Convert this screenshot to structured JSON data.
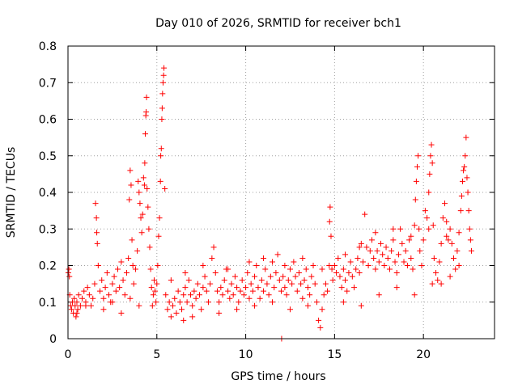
{
  "chart_data": {
    "type": "scatter",
    "title": "Day 010 of 2026, SRMTID for receiver bch1",
    "xlabel": "GPS time / hours",
    "ylabel": "SRMTID / TECUs",
    "xlim": [
      0,
      24
    ],
    "ylim": [
      0,
      0.8
    ],
    "xticks": [
      0,
      5,
      10,
      15,
      20
    ],
    "xtick_labels": [
      "0",
      "5",
      "10",
      "15",
      "20"
    ],
    "yticks": [
      0,
      0.1,
      0.2,
      0.3,
      0.4,
      0.5,
      0.6,
      0.7,
      0.8
    ],
    "ytick_labels": [
      "0",
      "0.1",
      "0.2",
      "0.3",
      "0.4",
      "0.5",
      "0.6",
      "0.7",
      "0.8"
    ],
    "grid": true,
    "marker": "plus",
    "color": "#ff0000",
    "series": [
      {
        "name": "bch1",
        "points": [
          [
            0.02,
            0.18
          ],
          [
            0.05,
            0.19
          ],
          [
            0.08,
            0.17
          ],
          [
            0.1,
            0.12
          ],
          [
            0.15,
            0.09
          ],
          [
            0.2,
            0.08
          ],
          [
            0.25,
            0.1
          ],
          [
            0.3,
            0.07
          ],
          [
            0.35,
            0.11
          ],
          [
            0.4,
            0.09
          ],
          [
            0.45,
            0.06
          ],
          [
            0.5,
            0.1
          ],
          [
            0.55,
            0.08
          ],
          [
            0.6,
            0.12
          ],
          [
            0.7,
            0.09
          ],
          [
            0.8,
            0.11
          ],
          [
            0.9,
            0.13
          ],
          [
            1.0,
            0.1
          ],
          [
            1.1,
            0.14
          ],
          [
            1.2,
            0.12
          ],
          [
            1.3,
            0.09
          ],
          [
            1.4,
            0.11
          ],
          [
            1.5,
            0.15
          ],
          [
            1.55,
            0.37
          ],
          [
            1.6,
            0.33
          ],
          [
            1.62,
            0.29
          ],
          [
            1.65,
            0.26
          ],
          [
            1.7,
            0.2
          ],
          [
            1.8,
            0.13
          ],
          [
            1.9,
            0.16
          ],
          [
            2.0,
            0.11
          ],
          [
            2.1,
            0.14
          ],
          [
            2.2,
            0.18
          ],
          [
            2.3,
            0.12
          ],
          [
            2.4,
            0.1
          ],
          [
            2.5,
            0.15
          ],
          [
            2.6,
            0.17
          ],
          [
            2.7,
            0.13
          ],
          [
            2.8,
            0.19
          ],
          [
            2.9,
            0.14
          ],
          [
            3.0,
            0.21
          ],
          [
            3.1,
            0.16
          ],
          [
            3.2,
            0.12
          ],
          [
            3.3,
            0.18
          ],
          [
            3.4,
            0.22
          ],
          [
            3.45,
            0.38
          ],
          [
            3.5,
            0.46
          ],
          [
            3.55,
            0.42
          ],
          [
            3.6,
            0.27
          ],
          [
            3.65,
            0.2
          ],
          [
            3.7,
            0.15
          ],
          [
            3.8,
            0.19
          ],
          [
            3.9,
            0.24
          ],
          [
            3.95,
            0.43
          ],
          [
            4.0,
            0.4
          ],
          [
            4.05,
            0.37
          ],
          [
            4.1,
            0.33
          ],
          [
            4.15,
            0.29
          ],
          [
            4.2,
            0.34
          ],
          [
            4.25,
            0.44
          ],
          [
            4.3,
            0.42
          ],
          [
            4.32,
            0.48
          ],
          [
            4.35,
            0.56
          ],
          [
            4.38,
            0.61
          ],
          [
            4.4,
            0.62
          ],
          [
            4.42,
            0.66
          ],
          [
            4.45,
            0.41
          ],
          [
            4.5,
            0.36
          ],
          [
            4.55,
            0.3
          ],
          [
            4.6,
            0.25
          ],
          [
            4.65,
            0.19
          ],
          [
            4.7,
            0.14
          ],
          [
            4.75,
            0.09
          ],
          [
            4.8,
            0.12
          ],
          [
            4.85,
            0.16
          ],
          [
            4.9,
            0.13
          ],
          [
            4.95,
            0.1
          ],
          [
            5.0,
            0.15
          ],
          [
            5.05,
            0.2
          ],
          [
            5.1,
            0.28
          ],
          [
            5.15,
            0.33
          ],
          [
            5.2,
            0.43
          ],
          [
            5.22,
            0.5
          ],
          [
            5.25,
            0.52
          ],
          [
            5.28,
            0.6
          ],
          [
            5.3,
            0.63
          ],
          [
            5.32,
            0.67
          ],
          [
            5.35,
            0.7
          ],
          [
            5.38,
            0.72
          ],
          [
            5.4,
            0.74
          ],
          [
            5.45,
            0.41
          ],
          [
            5.5,
            0.12
          ],
          [
            5.6,
            0.08
          ],
          [
            5.7,
            0.1
          ],
          [
            5.8,
            0.06
          ],
          [
            5.9,
            0.09
          ],
          [
            6.0,
            0.11
          ],
          [
            6.1,
            0.07
          ],
          [
            6.2,
            0.13
          ],
          [
            6.3,
            0.1
          ],
          [
            6.4,
            0.08
          ],
          [
            6.5,
            0.12
          ],
          [
            6.6,
            0.14
          ],
          [
            6.7,
            0.1
          ],
          [
            6.8,
            0.16
          ],
          [
            6.9,
            0.12
          ],
          [
            7.0,
            0.09
          ],
          [
            7.1,
            0.13
          ],
          [
            7.2,
            0.11
          ],
          [
            7.3,
            0.15
          ],
          [
            7.4,
            0.12
          ],
          [
            7.5,
            0.08
          ],
          [
            7.6,
            0.14
          ],
          [
            7.7,
            0.17
          ],
          [
            7.8,
            0.13
          ],
          [
            7.9,
            0.1
          ],
          [
            8.0,
            0.15
          ],
          [
            8.1,
            0.22
          ],
          [
            8.2,
            0.25
          ],
          [
            8.3,
            0.18
          ],
          [
            8.4,
            0.13
          ],
          [
            8.5,
            0.1
          ],
          [
            8.6,
            0.14
          ],
          [
            8.7,
            0.12
          ],
          [
            8.8,
            0.16
          ],
          [
            8.9,
            0.19
          ],
          [
            9.0,
            0.13
          ],
          [
            9.1,
            0.11
          ],
          [
            9.2,
            0.15
          ],
          [
            9.3,
            0.12
          ],
          [
            9.4,
            0.17
          ],
          [
            9.5,
            0.14
          ],
          [
            9.6,
            0.1
          ],
          [
            9.7,
            0.13
          ],
          [
            9.8,
            0.16
          ],
          [
            9.9,
            0.12
          ],
          [
            10.0,
            0.14
          ],
          [
            10.1,
            0.18
          ],
          [
            10.2,
            0.11
          ],
          [
            10.3,
            0.15
          ],
          [
            10.4,
            0.13
          ],
          [
            10.5,
            0.17
          ],
          [
            10.6,
            0.2
          ],
          [
            10.7,
            0.14
          ],
          [
            10.8,
            0.11
          ],
          [
            10.9,
            0.16
          ],
          [
            11.0,
            0.13
          ],
          [
            11.1,
            0.19
          ],
          [
            11.2,
            0.15
          ],
          [
            11.3,
            0.12
          ],
          [
            11.4,
            0.17
          ],
          [
            11.5,
            0.21
          ],
          [
            11.6,
            0.14
          ],
          [
            11.7,
            0.18
          ],
          [
            11.8,
            0.23
          ],
          [
            11.9,
            0.16
          ],
          [
            12.0,
            0.13
          ],
          [
            12.02,
            0.0
          ],
          [
            12.1,
            0.17
          ],
          [
            12.2,
            0.14
          ],
          [
            12.3,
            0.12
          ],
          [
            12.4,
            0.16
          ],
          [
            12.5,
            0.19
          ],
          [
            12.6,
            0.15
          ],
          [
            12.7,
            0.21
          ],
          [
            12.8,
            0.17
          ],
          [
            12.9,
            0.13
          ],
          [
            13.0,
            0.18
          ],
          [
            13.1,
            0.15
          ],
          [
            13.2,
            0.11
          ],
          [
            13.3,
            0.16
          ],
          [
            13.4,
            0.19
          ],
          [
            13.5,
            0.14
          ],
          [
            13.6,
            0.12
          ],
          [
            13.7,
            0.17
          ],
          [
            13.8,
            0.2
          ],
          [
            13.9,
            0.15
          ],
          [
            14.0,
            0.1
          ],
          [
            14.1,
            0.05
          ],
          [
            14.2,
            0.03
          ],
          [
            14.3,
            0.08
          ],
          [
            14.4,
            0.12
          ],
          [
            14.5,
            0.15
          ],
          [
            14.6,
            0.13
          ],
          [
            14.7,
            0.2
          ],
          [
            14.72,
            0.32
          ],
          [
            14.75,
            0.36
          ],
          [
            14.8,
            0.28
          ],
          [
            14.85,
            0.19
          ],
          [
            14.9,
            0.16
          ],
          [
            15.0,
            0.2
          ],
          [
            15.1,
            0.18
          ],
          [
            15.2,
            0.22
          ],
          [
            15.3,
            0.17
          ],
          [
            15.4,
            0.14
          ],
          [
            15.5,
            0.19
          ],
          [
            15.6,
            0.16
          ],
          [
            15.7,
            0.13
          ],
          [
            15.8,
            0.18
          ],
          [
            15.9,
            0.21
          ],
          [
            16.0,
            0.17
          ],
          [
            16.1,
            0.14
          ],
          [
            16.2,
            0.19
          ],
          [
            16.3,
            0.22
          ],
          [
            16.4,
            0.18
          ],
          [
            16.5,
            0.26
          ],
          [
            16.6,
            0.21
          ],
          [
            16.7,
            0.34
          ],
          [
            16.8,
            0.25
          ],
          [
            16.9,
            0.2
          ],
          [
            17.0,
            0.24
          ],
          [
            17.1,
            0.27
          ],
          [
            17.2,
            0.22
          ],
          [
            17.3,
            0.19
          ],
          [
            17.4,
            0.24
          ],
          [
            17.5,
            0.21
          ],
          [
            17.6,
            0.26
          ],
          [
            17.7,
            0.23
          ],
          [
            17.8,
            0.2
          ],
          [
            17.9,
            0.25
          ],
          [
            18.0,
            0.22
          ],
          [
            18.1,
            0.19
          ],
          [
            18.2,
            0.24
          ],
          [
            18.3,
            0.27
          ],
          [
            18.4,
            0.21
          ],
          [
            18.5,
            0.18
          ],
          [
            18.6,
            0.23
          ],
          [
            18.7,
            0.3
          ],
          [
            18.8,
            0.26
          ],
          [
            18.9,
            0.21
          ],
          [
            19.0,
            0.24
          ],
          [
            19.1,
            0.2
          ],
          [
            19.2,
            0.27
          ],
          [
            19.3,
            0.22
          ],
          [
            19.4,
            0.19
          ],
          [
            19.5,
            0.31
          ],
          [
            19.55,
            0.38
          ],
          [
            19.6,
            0.43
          ],
          [
            19.65,
            0.47
          ],
          [
            19.7,
            0.5
          ],
          [
            19.75,
            0.3
          ],
          [
            19.8,
            0.24
          ],
          [
            19.9,
            0.2
          ],
          [
            20.0,
            0.27
          ],
          [
            20.1,
            0.35
          ],
          [
            20.2,
            0.33
          ],
          [
            20.3,
            0.4
          ],
          [
            20.35,
            0.45
          ],
          [
            20.4,
            0.5
          ],
          [
            20.45,
            0.53
          ],
          [
            20.5,
            0.48
          ],
          [
            20.55,
            0.31
          ],
          [
            20.6,
            0.22
          ],
          [
            20.7,
            0.18
          ],
          [
            20.8,
            0.16
          ],
          [
            20.9,
            0.21
          ],
          [
            21.0,
            0.26
          ],
          [
            21.1,
            0.33
          ],
          [
            21.2,
            0.37
          ],
          [
            21.3,
            0.32
          ],
          [
            21.4,
            0.27
          ],
          [
            21.5,
            0.3
          ],
          [
            21.6,
            0.26
          ],
          [
            21.7,
            0.22
          ],
          [
            21.8,
            0.19
          ],
          [
            21.9,
            0.24
          ],
          [
            22.0,
            0.29
          ],
          [
            22.1,
            0.35
          ],
          [
            22.15,
            0.39
          ],
          [
            22.2,
            0.43
          ],
          [
            22.25,
            0.46
          ],
          [
            22.3,
            0.47
          ],
          [
            22.35,
            0.5
          ],
          [
            22.4,
            0.55
          ],
          [
            22.45,
            0.44
          ],
          [
            22.5,
            0.4
          ],
          [
            22.55,
            0.35
          ],
          [
            22.6,
            0.3
          ],
          [
            22.65,
            0.27
          ],
          [
            22.7,
            0.24
          ],
          [
            0.5,
            0.07
          ],
          [
            1.0,
            0.09
          ],
          [
            2.0,
            0.08
          ],
          [
            2.5,
            0.1
          ],
          [
            3.0,
            0.07
          ],
          [
            3.5,
            0.11
          ],
          [
            4.0,
            0.09
          ],
          [
            6.5,
            0.05
          ],
          [
            7.0,
            0.06
          ],
          [
            8.5,
            0.07
          ],
          [
            9.5,
            0.08
          ],
          [
            10.5,
            0.09
          ],
          [
            11.5,
            0.1
          ],
          [
            12.5,
            0.08
          ],
          [
            13.5,
            0.09
          ],
          [
            15.5,
            0.1
          ],
          [
            16.5,
            0.09
          ],
          [
            17.5,
            0.12
          ],
          [
            18.5,
            0.14
          ],
          [
            19.5,
            0.12
          ],
          [
            21.0,
            0.15
          ],
          [
            21.5,
            0.17
          ],
          [
            22.0,
            0.2
          ],
          [
            20.5,
            0.15
          ],
          [
            5.8,
            0.16
          ],
          [
            6.6,
            0.18
          ],
          [
            7.6,
            0.2
          ],
          [
            9.0,
            0.19
          ],
          [
            10.2,
            0.21
          ],
          [
            11.0,
            0.22
          ],
          [
            12.2,
            0.2
          ],
          [
            13.2,
            0.22
          ],
          [
            14.3,
            0.19
          ],
          [
            15.6,
            0.23
          ],
          [
            16.4,
            0.25
          ],
          [
            17.3,
            0.29
          ],
          [
            18.3,
            0.3
          ],
          [
            19.3,
            0.28
          ],
          [
            20.3,
            0.3
          ],
          [
            21.3,
            0.28
          ]
        ]
      }
    ]
  }
}
